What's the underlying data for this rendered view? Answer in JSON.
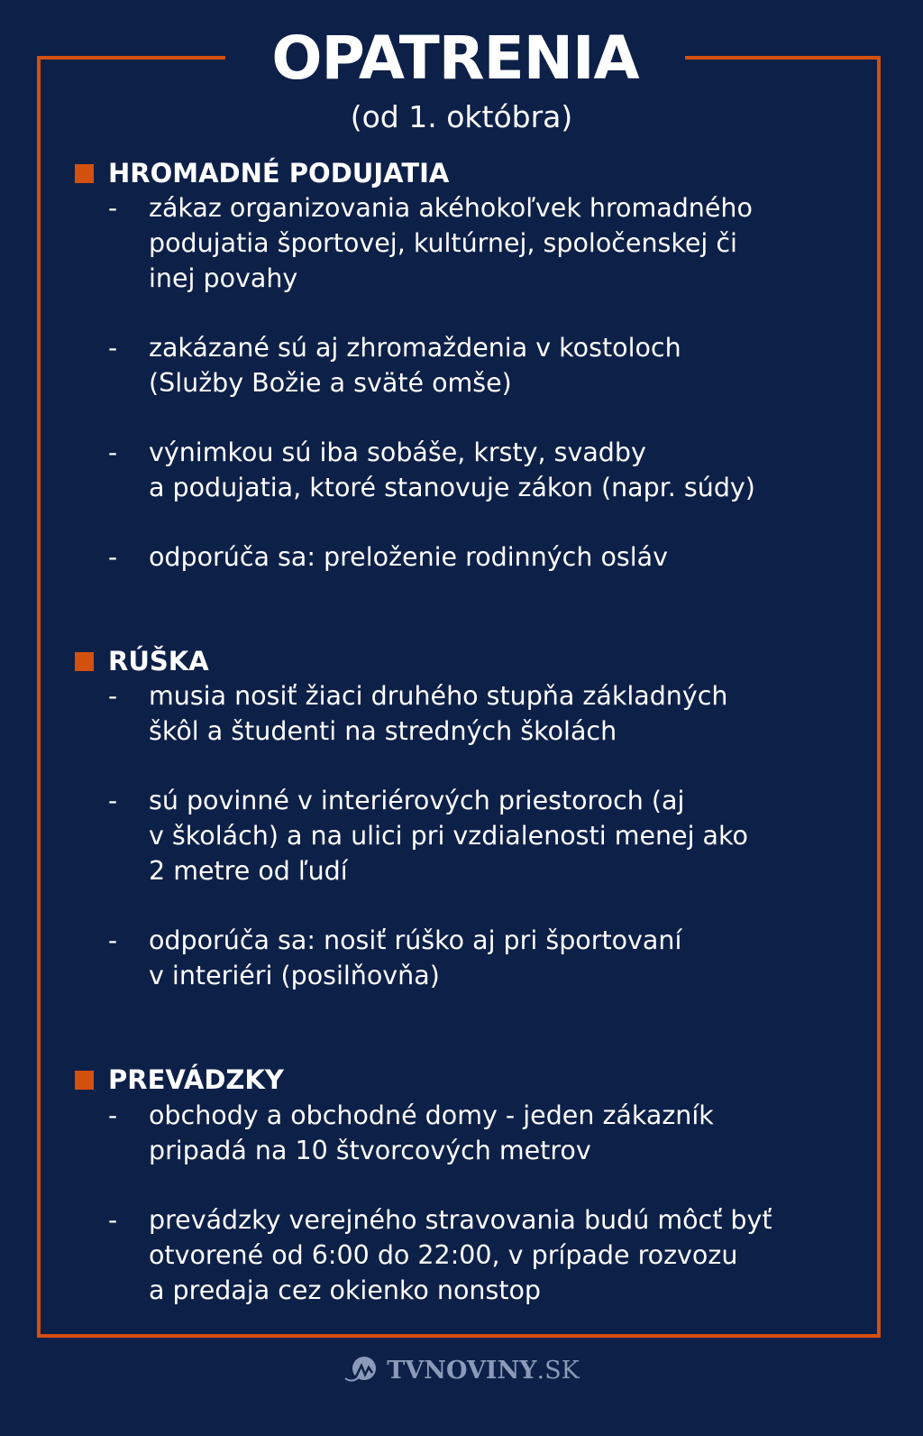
{
  "title": "OPATRENIA",
  "subtitle": "(od 1. októbra)",
  "colors": {
    "background": "#0d2048",
    "accent": "#d4500f",
    "text": "#ffffff",
    "logo": "#8a9ab8"
  },
  "sections": [
    {
      "heading": "HROMADNÉ PODUJATIA",
      "items": [
        [
          "zákaz organizovania akéhokoľvek hromadného",
          "podujatia športovej, kultúrnej, spoločenskej či",
          "inej povahy"
        ],
        [
          "zakázané sú aj zhromaždenia v kostoloch",
          "(Služby Božie a sväté omše)"
        ],
        [
          "výnimkou sú iba sobáše, krsty, svadby",
          "a podujatia, ktoré stanovuje zákon (napr. súdy)"
        ],
        [
          "odporúča sa: preloženie rodinných osláv"
        ]
      ]
    },
    {
      "heading": "RÚŠKA",
      "items": [
        [
          "musia nosiť žiaci druhého stupňa základných",
          "škôl a študenti na stredných školách"
        ],
        [
          "sú povinné v interiérových priestoroch (aj",
          "v školách) a na ulici pri vzdialenosti menej ako",
          "2 metre od ľudí"
        ],
        [
          "odporúča sa: nosiť rúško aj pri športovaní",
          "v interiéri (posilňovňa)"
        ]
      ]
    },
    {
      "heading": "PREVÁDZKY",
      "items": [
        [
          "obchody a obchodné domy -  jeden zákazník",
          "pripadá na 10 štvorcových metrov"
        ],
        [
          "prevádzky verejného stravovania budú môcť byť",
          "otvorené od 6:00 do 22:00, v prípade rozvozu",
          "a predaja cez okienko nonstop"
        ]
      ]
    }
  ],
  "dash": "-",
  "logo": {
    "name": "TVNOVINY",
    "tld": ".SK",
    "icon": "tvnoviny-logo-icon"
  }
}
